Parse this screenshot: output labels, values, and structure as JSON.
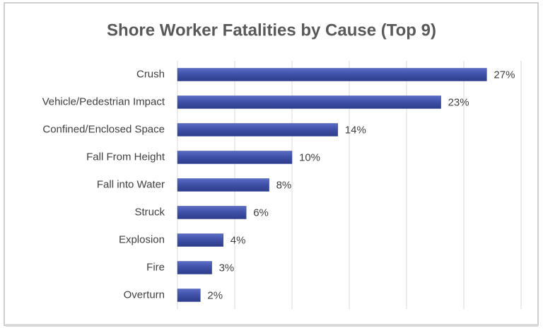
{
  "chart_data": {
    "type": "hbar",
    "title": "Shore Worker Fatalities by Cause (Top 9)",
    "categories": [
      "Crush",
      "Vehicle/Pedestrian Impact",
      "Confined/Enclosed Space",
      "Fall From Height",
      "Fall into Water",
      "Struck",
      "Explosion",
      "Fire",
      "Overturn"
    ],
    "values": [
      27,
      23,
      14,
      10,
      8,
      6,
      4,
      3,
      2
    ],
    "value_labels": [
      "27%",
      "23%",
      "14%",
      "10%",
      "8%",
      "6%",
      "4%",
      "3%",
      "2%"
    ],
    "color": "#3f51a9",
    "xlim": [
      0,
      30
    ],
    "xticks": [
      0,
      5,
      10,
      15,
      20,
      25,
      30
    ],
    "grid": true
  }
}
